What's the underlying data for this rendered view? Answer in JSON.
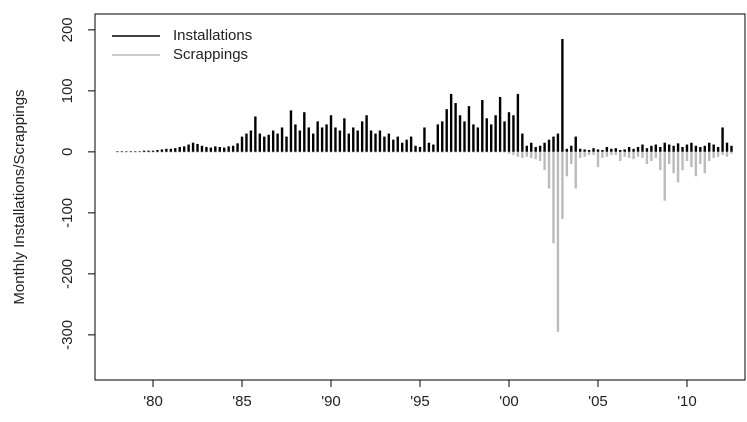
{
  "chart_data": {
    "type": "bar",
    "ylabel": "Monthly Installations/Scrappings",
    "x": [
      1978,
      1978.25,
      1978.5,
      1978.75,
      1979,
      1979.25,
      1979.5,
      1979.75,
      1980,
      1980.25,
      1980.5,
      1980.75,
      1981,
      1981.25,
      1981.5,
      1981.75,
      1982,
      1982.25,
      1982.5,
      1982.75,
      1983,
      1983.25,
      1983.5,
      1983.75,
      1984,
      1984.25,
      1984.5,
      1984.75,
      1985,
      1985.25,
      1985.5,
      1985.75,
      1986,
      1986.25,
      1986.5,
      1986.75,
      1987,
      1987.25,
      1987.5,
      1987.75,
      1988,
      1988.25,
      1988.5,
      1988.75,
      1989,
      1989.25,
      1989.5,
      1989.75,
      1990,
      1990.25,
      1990.5,
      1990.75,
      1991,
      1991.25,
      1991.5,
      1991.75,
      1992,
      1992.25,
      1992.5,
      1992.75,
      1993,
      1993.25,
      1993.5,
      1993.75,
      1994,
      1994.25,
      1994.5,
      1994.75,
      1995,
      1995.25,
      1995.5,
      1995.75,
      1996,
      1996.25,
      1996.5,
      1996.75,
      1997,
      1997.25,
      1997.5,
      1997.75,
      1998,
      1998.25,
      1998.5,
      1998.75,
      1999,
      1999.25,
      1999.5,
      1999.75,
      2000,
      2000.25,
      2000.5,
      2000.75,
      2001,
      2001.25,
      2001.5,
      2001.75,
      2002,
      2002.25,
      2002.5,
      2002.75,
      2003,
      2003.25,
      2003.5,
      2003.75,
      2004,
      2004.25,
      2004.5,
      2004.75,
      2005,
      2005.25,
      2005.5,
      2005.75,
      2006,
      2006.25,
      2006.5,
      2006.75,
      2007,
      2007.25,
      2007.5,
      2007.75,
      2008,
      2008.25,
      2008.5,
      2008.75,
      2009,
      2009.25,
      2009.5,
      2009.75,
      2010,
      2010.25,
      2010.5,
      2010.75,
      2011,
      2011.25,
      2011.5,
      2011.75,
      2012,
      2012.25,
      2012.5
    ],
    "series": [
      {
        "name": "Installations",
        "color": "#000000",
        "values": [
          1,
          1,
          1,
          1,
          1,
          1,
          2,
          2,
          2,
          3,
          4,
          5,
          5,
          6,
          8,
          9,
          12,
          15,
          13,
          10,
          8,
          7,
          9,
          8,
          7,
          9,
          10,
          14,
          25,
          30,
          35,
          58,
          30,
          25,
          28,
          35,
          30,
          40,
          25,
          68,
          45,
          35,
          65,
          40,
          30,
          50,
          40,
          45,
          60,
          40,
          35,
          55,
          30,
          40,
          35,
          50,
          60,
          35,
          30,
          35,
          25,
          30,
          20,
          25,
          15,
          20,
          25,
          10,
          8,
          40,
          15,
          12,
          45,
          50,
          70,
          95,
          80,
          60,
          50,
          75,
          45,
          40,
          85,
          55,
          45,
          60,
          90,
          50,
          65,
          60,
          95,
          30,
          10,
          15,
          8,
          10,
          15,
          20,
          25,
          30,
          185,
          5,
          10,
          25,
          5,
          4,
          3,
          6,
          4,
          3,
          8,
          5,
          6,
          3,
          4,
          8,
          5,
          8,
          12,
          6,
          10,
          12,
          8,
          15,
          12,
          10,
          14,
          8,
          12,
          15,
          10,
          8,
          10,
          15,
          12,
          8,
          40,
          15,
          10
        ]
      },
      {
        "name": "Scrappings",
        "color": "#bbbbbb",
        "values": [
          0,
          0,
          0,
          0,
          0,
          0,
          0,
          0,
          0,
          0,
          0,
          0,
          0,
          0,
          0,
          0,
          0,
          0,
          0,
          0,
          0,
          0,
          0,
          0,
          0,
          0,
          0,
          0,
          0,
          0,
          0,
          0,
          0,
          0,
          0,
          0,
          0,
          0,
          0,
          0,
          0,
          0,
          0,
          0,
          0,
          0,
          0,
          0,
          0,
          0,
          0,
          0,
          0,
          0,
          0,
          0,
          0,
          0,
          0,
          0,
          0,
          0,
          0,
          0,
          0,
          0,
          0,
          0,
          0,
          0,
          0,
          0,
          0,
          0,
          0,
          0,
          0,
          0,
          0,
          0,
          0,
          0,
          0,
          0,
          0,
          0,
          0,
          0,
          -3,
          -5,
          -8,
          -10,
          -8,
          -10,
          -12,
          -15,
          -30,
          -60,
          -150,
          -295,
          -110,
          -40,
          -20,
          -60,
          -10,
          -8,
          -5,
          -5,
          -25,
          -10,
          -8,
          -5,
          -5,
          -15,
          -8,
          -10,
          -12,
          -8,
          -10,
          -20,
          -15,
          -10,
          -30,
          -80,
          -20,
          -35,
          -50,
          -30,
          -15,
          -25,
          -40,
          -20,
          -35,
          -15,
          -10,
          -8,
          -5,
          -8,
          -3
        ]
      }
    ],
    "xlim": [
      1976.74,
      2013.26
    ],
    "ylim": [
      -374,
      226
    ],
    "xticks": [
      {
        "value": 1980,
        "label": "'80"
      },
      {
        "value": 1985,
        "label": "'85"
      },
      {
        "value": 1990,
        "label": "'90"
      },
      {
        "value": 1995,
        "label": "'95"
      },
      {
        "value": 2000,
        "label": "'00"
      },
      {
        "value": 2005,
        "label": "'05"
      },
      {
        "value": 2010,
        "label": "'10"
      }
    ],
    "yticks": [
      -300,
      -200,
      -100,
      0,
      100,
      200
    ],
    "legend": "top-left"
  }
}
